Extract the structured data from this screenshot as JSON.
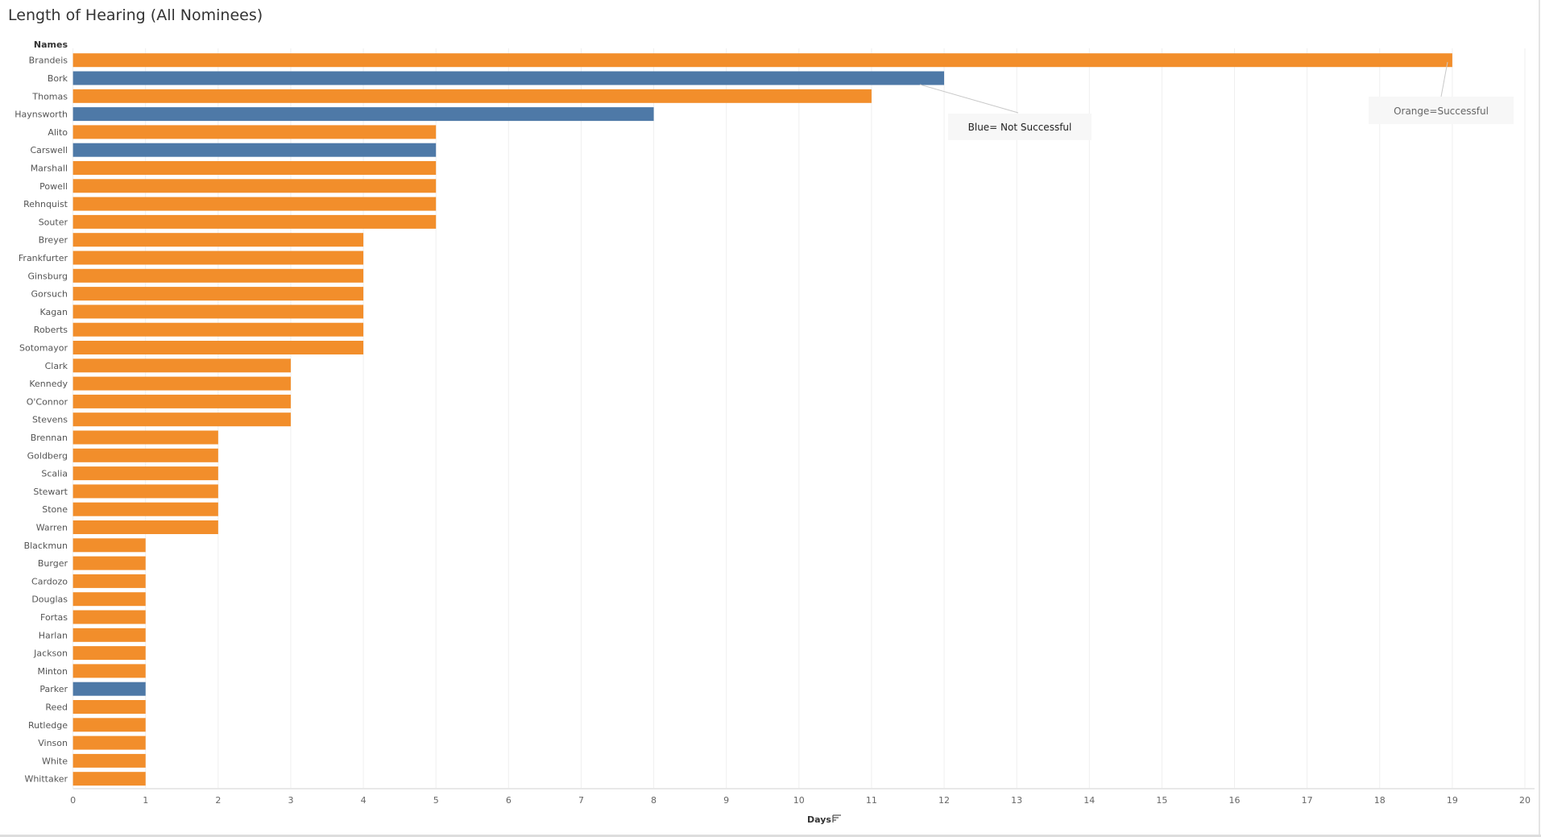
{
  "chart_data": {
    "type": "bar",
    "orientation": "horizontal",
    "title": "Length of Hearing (All Nominees)",
    "ylabel": "Names",
    "xlabel": "Days",
    "xlim": [
      0,
      20
    ],
    "xticks": [
      0,
      1,
      2,
      3,
      4,
      5,
      6,
      7,
      8,
      9,
      10,
      11,
      12,
      13,
      14,
      15,
      16,
      17,
      18,
      19,
      20
    ],
    "grid": "vertical",
    "colors": {
      "successful": "#f28e2b",
      "not_successful": "#4e79a7"
    },
    "categories": [
      "Brandeis",
      "Bork",
      "Thomas",
      "Haynsworth",
      "Alito",
      "Carswell",
      "Marshall",
      "Powell",
      "Rehnquist",
      "Souter",
      "Breyer",
      "Frankfurter",
      "Ginsburg",
      "Gorsuch",
      "Kagan",
      "Roberts",
      "Sotomayor",
      "Clark",
      "Kennedy",
      "O'Connor",
      "Stevens",
      "Brennan",
      "Goldberg",
      "Scalia",
      "Stewart",
      "Stone",
      "Warren",
      "Blackmun",
      "Burger",
      "Cardozo",
      "Douglas",
      "Fortas",
      "Harlan",
      "Jackson",
      "Minton",
      "Parker",
      "Reed",
      "Rutledge",
      "Vinson",
      "White",
      "Whittaker"
    ],
    "values": [
      19,
      12,
      11,
      8,
      5,
      5,
      5,
      5,
      5,
      5,
      4,
      4,
      4,
      4,
      4,
      4,
      4,
      3,
      3,
      3,
      3,
      2,
      2,
      2,
      2,
      2,
      2,
      1,
      1,
      1,
      1,
      1,
      1,
      1,
      1,
      1,
      1,
      1,
      1,
      1,
      1
    ],
    "successful": [
      true,
      false,
      true,
      false,
      true,
      false,
      true,
      true,
      true,
      true,
      true,
      true,
      true,
      true,
      true,
      true,
      true,
      true,
      true,
      true,
      true,
      true,
      true,
      true,
      true,
      true,
      true,
      true,
      true,
      true,
      true,
      true,
      true,
      true,
      true,
      false,
      true,
      true,
      true,
      true,
      true
    ],
    "annotations": [
      {
        "text": "Blue= Not Successful",
        "target": "Bork"
      },
      {
        "text": "Orange=Successful",
        "target": "Brandeis"
      }
    ]
  }
}
